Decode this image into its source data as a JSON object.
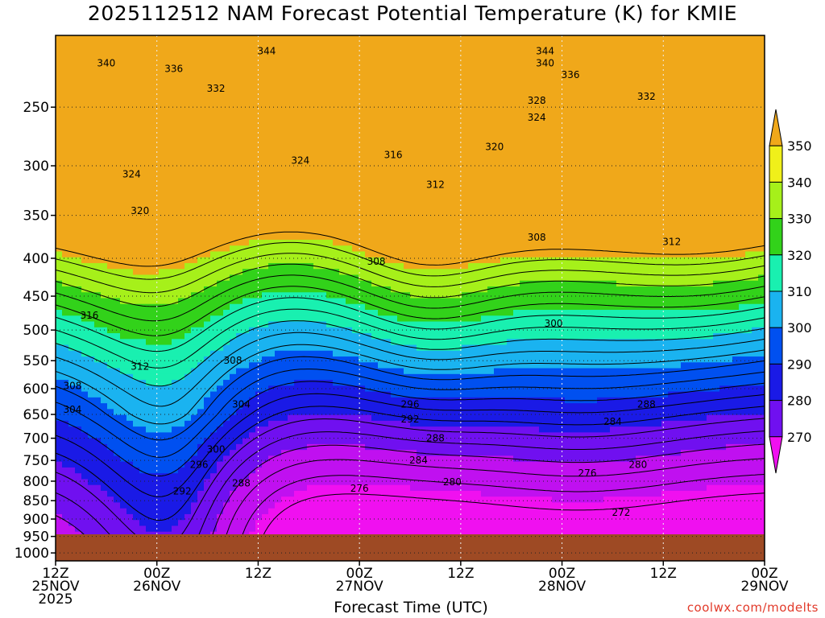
{
  "chart_data": {
    "type": "heatmap",
    "title": "2025112512 NAM Forecast Potential Temperature (K) for KMIE",
    "xlabel": "Forecast Time (UTC)",
    "ylabel": "",
    "x_ticks": [
      {
        "time": "12Z",
        "date": "25NOV",
        "year": "2025"
      },
      {
        "time": "00Z",
        "date": "26NOV",
        "year": ""
      },
      {
        "time": "12Z",
        "date": "",
        "year": ""
      },
      {
        "time": "00Z",
        "date": "27NOV",
        "year": ""
      },
      {
        "time": "12Z",
        "date": "",
        "year": ""
      },
      {
        "time": "00Z",
        "date": "28NOV",
        "year": ""
      },
      {
        "time": "12Z",
        "date": "",
        "year": ""
      },
      {
        "time": "00Z",
        "date": "29NOV",
        "year": ""
      }
    ],
    "x_range_hours": [
      0,
      84
    ],
    "y_ticks": [
      250,
      300,
      350,
      400,
      450,
      500,
      550,
      600,
      650,
      700,
      750,
      800,
      850,
      900,
      950,
      1000
    ],
    "y_range": [
      200,
      1025
    ],
    "y_scale": "log-pressure, inverted",
    "grid": true,
    "colorbar": {
      "levels": [
        270,
        280,
        290,
        300,
        310,
        320,
        330,
        340,
        350
      ],
      "colors": [
        "#f010f0",
        "#c010f0",
        "#7010f0",
        "#1a1ae6",
        "#0050f0",
        "#1ab3f0",
        "#19f0b0",
        "#32d21a",
        "#a6f01a",
        "#f0f01a",
        "#f0a81a"
      ],
      "placement": "right"
    },
    "contour_interval": 4,
    "contour_labels": [
      {
        "v": 344,
        "t": 25,
        "p": 210
      },
      {
        "v": 344,
        "t": 58,
        "p": 210
      },
      {
        "v": 340,
        "t": 6,
        "p": 218
      },
      {
        "v": 340,
        "t": 58,
        "p": 218
      },
      {
        "v": 336,
        "t": 14,
        "p": 222
      },
      {
        "v": 336,
        "t": 61,
        "p": 226
      },
      {
        "v": 332,
        "t": 19,
        "p": 236
      },
      {
        "v": 332,
        "t": 70,
        "p": 242
      },
      {
        "v": 328,
        "t": 57,
        "p": 245
      },
      {
        "v": 324,
        "t": 57,
        "p": 258
      },
      {
        "v": 324,
        "t": 29,
        "p": 295
      },
      {
        "v": 324,
        "t": 9,
        "p": 308
      },
      {
        "v": 320,
        "t": 52,
        "p": 283
      },
      {
        "v": 320,
        "t": 10,
        "p": 345
      },
      {
        "v": 316,
        "t": 40,
        "p": 290
      },
      {
        "v": 316,
        "t": 4,
        "p": 478
      },
      {
        "v": 312,
        "t": 45,
        "p": 318
      },
      {
        "v": 312,
        "t": 73,
        "p": 380
      },
      {
        "v": 312,
        "t": 10,
        "p": 560
      },
      {
        "v": 308,
        "t": 57,
        "p": 375
      },
      {
        "v": 308,
        "t": 38,
        "p": 404
      },
      {
        "v": 308,
        "t": 21,
        "p": 550
      },
      {
        "v": 308,
        "t": 2,
        "p": 595
      },
      {
        "v": 304,
        "t": 2,
        "p": 640
      },
      {
        "v": 304,
        "t": 22,
        "p": 630
      },
      {
        "v": 300,
        "t": 59,
        "p": 490
      },
      {
        "v": 300,
        "t": 19,
        "p": 725
      },
      {
        "v": 296,
        "t": 17,
        "p": 760
      },
      {
        "v": 296,
        "t": 42,
        "p": 630
      },
      {
        "v": 292,
        "t": 42,
        "p": 660
      },
      {
        "v": 292,
        "t": 15,
        "p": 825
      },
      {
        "v": 288,
        "t": 22,
        "p": 805
      },
      {
        "v": 288,
        "t": 45,
        "p": 700
      },
      {
        "v": 288,
        "t": 70,
        "p": 630
      },
      {
        "v": 284,
        "t": 66,
        "p": 665
      },
      {
        "v": 284,
        "t": 43,
        "p": 750
      },
      {
        "v": 280,
        "t": 47,
        "p": 802
      },
      {
        "v": 280,
        "t": 69,
        "p": 760
      },
      {
        "v": 276,
        "t": 36,
        "p": 818
      },
      {
        "v": 276,
        "t": 63,
        "p": 780
      },
      {
        "v": 272,
        "t": 67,
        "p": 882
      }
    ]
  },
  "credit": "coolwx.com/modelts"
}
